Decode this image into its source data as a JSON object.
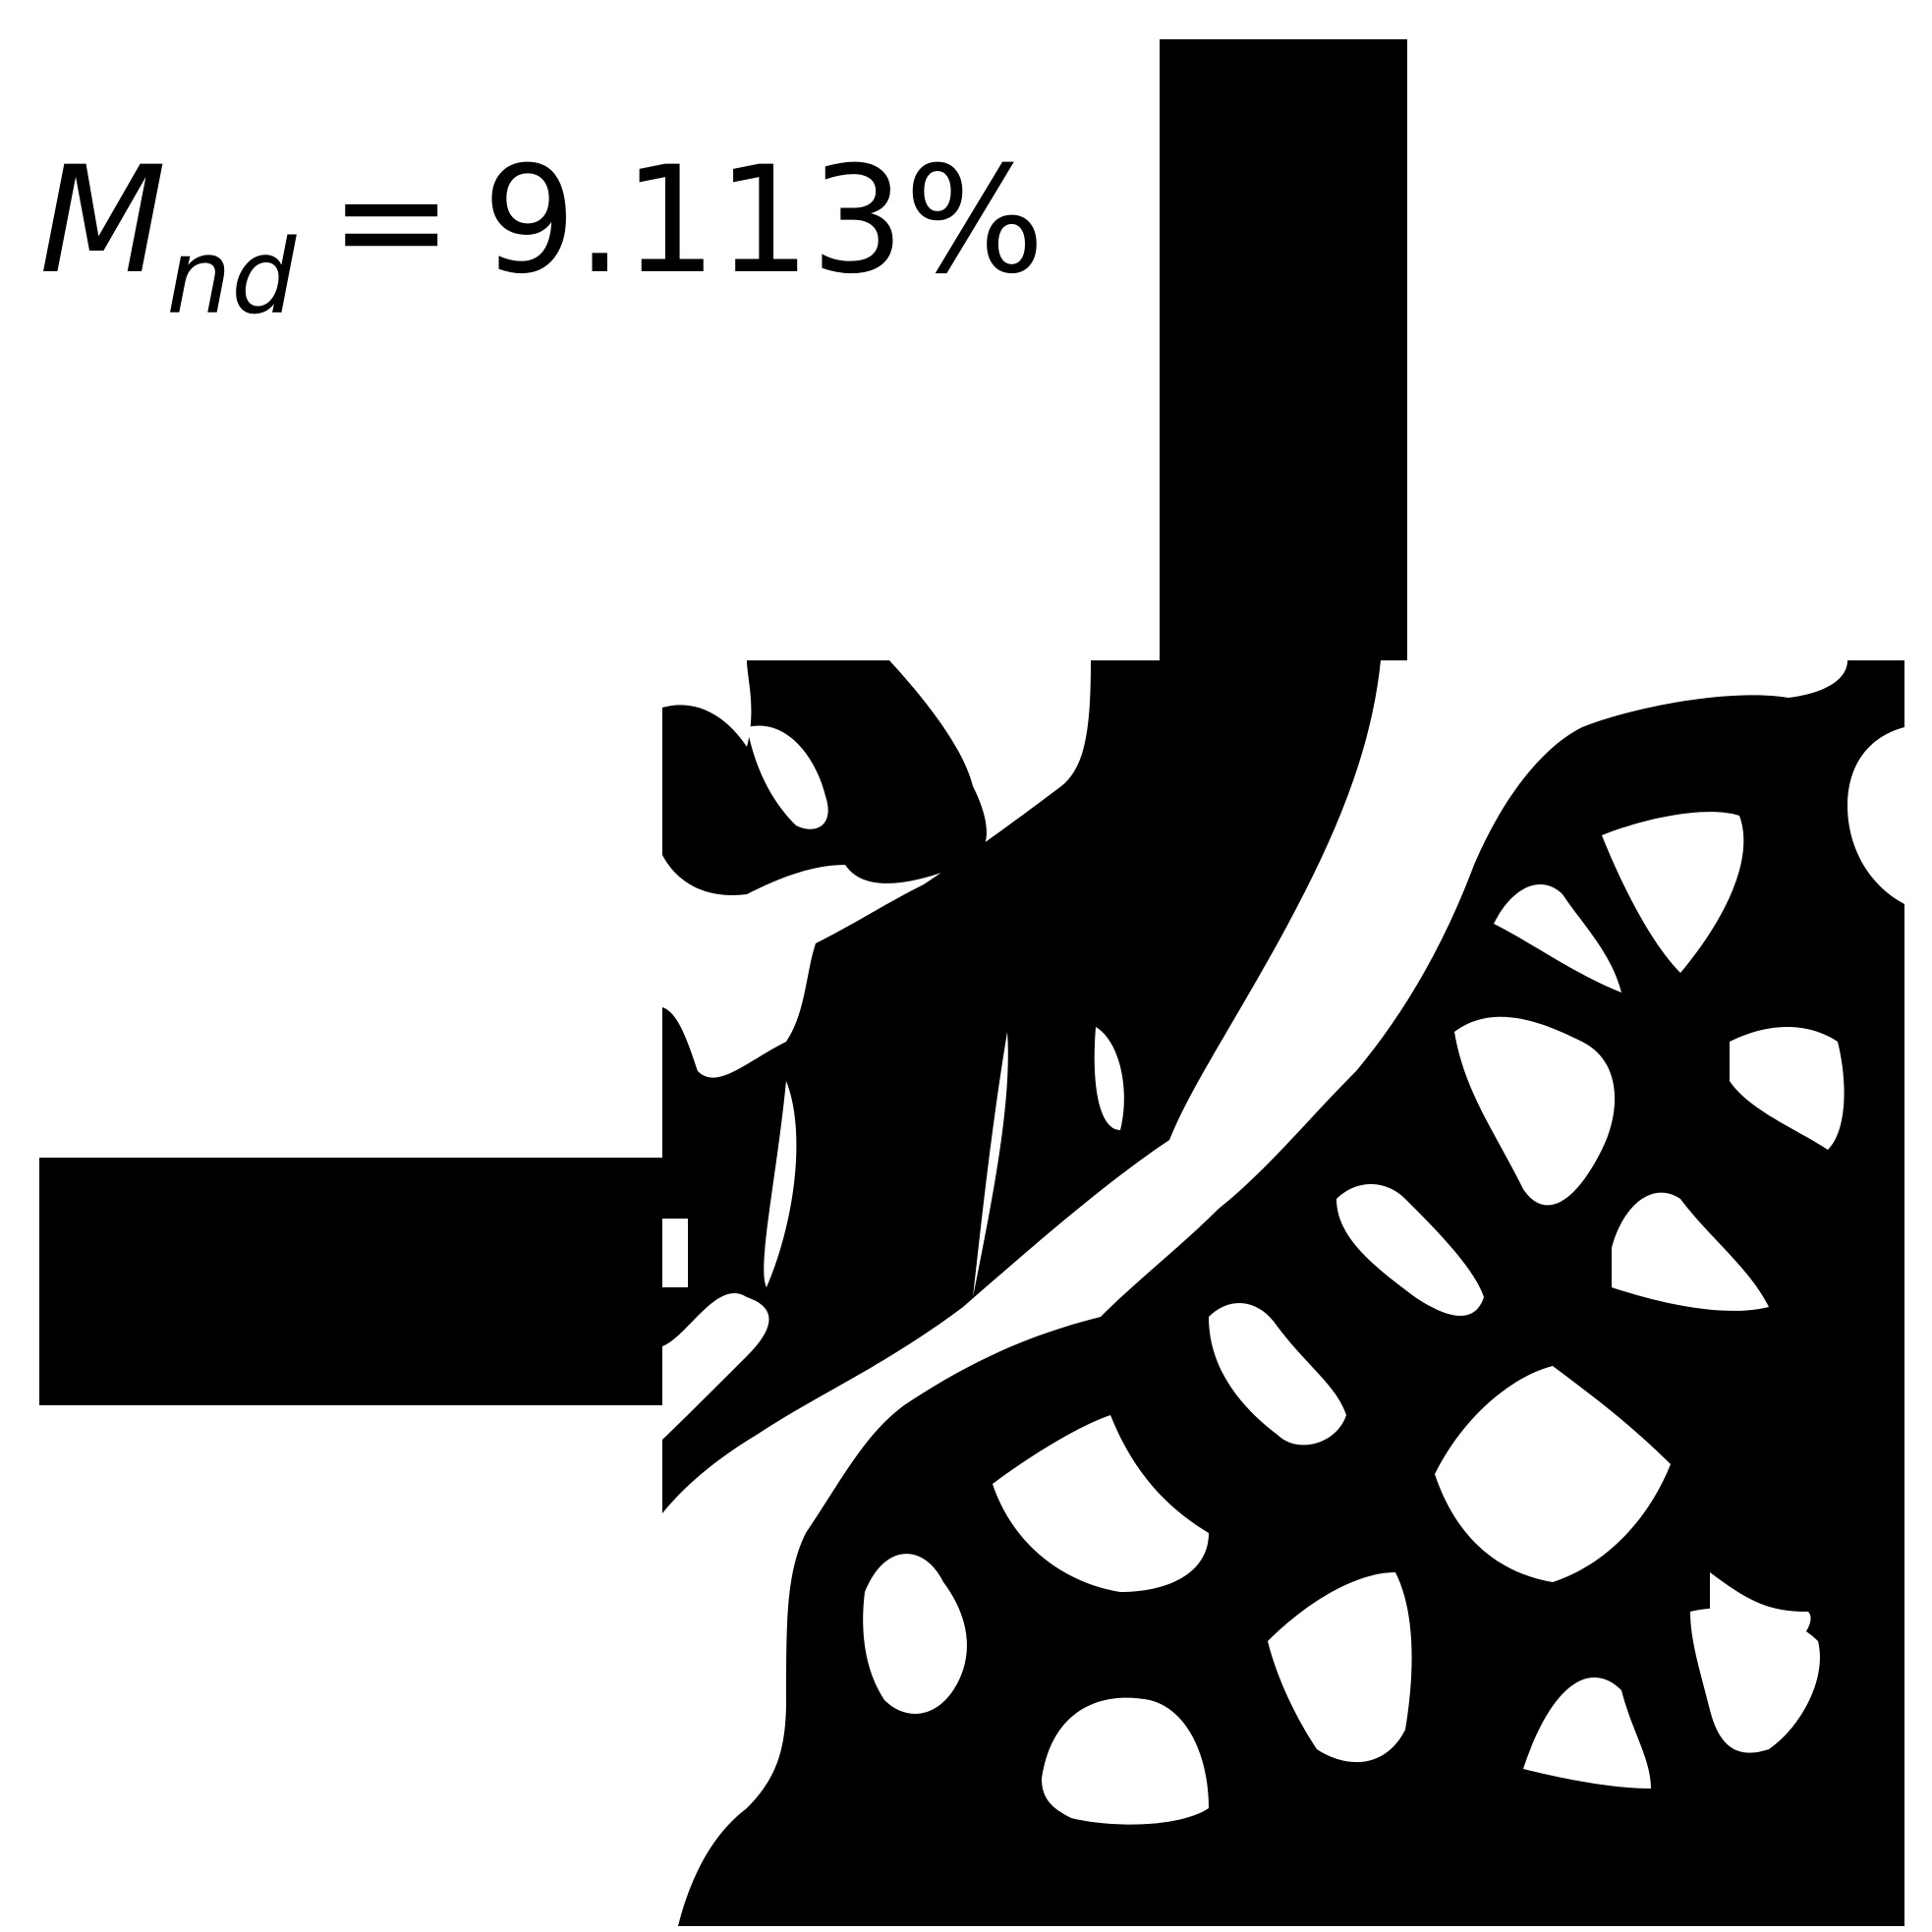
{
  "annotation": {
    "symbol": "M",
    "subscript": "nd",
    "equals": "=",
    "value": "9.113%"
  },
  "colors": {
    "material": "#000000",
    "void": "#ffffff"
  }
}
